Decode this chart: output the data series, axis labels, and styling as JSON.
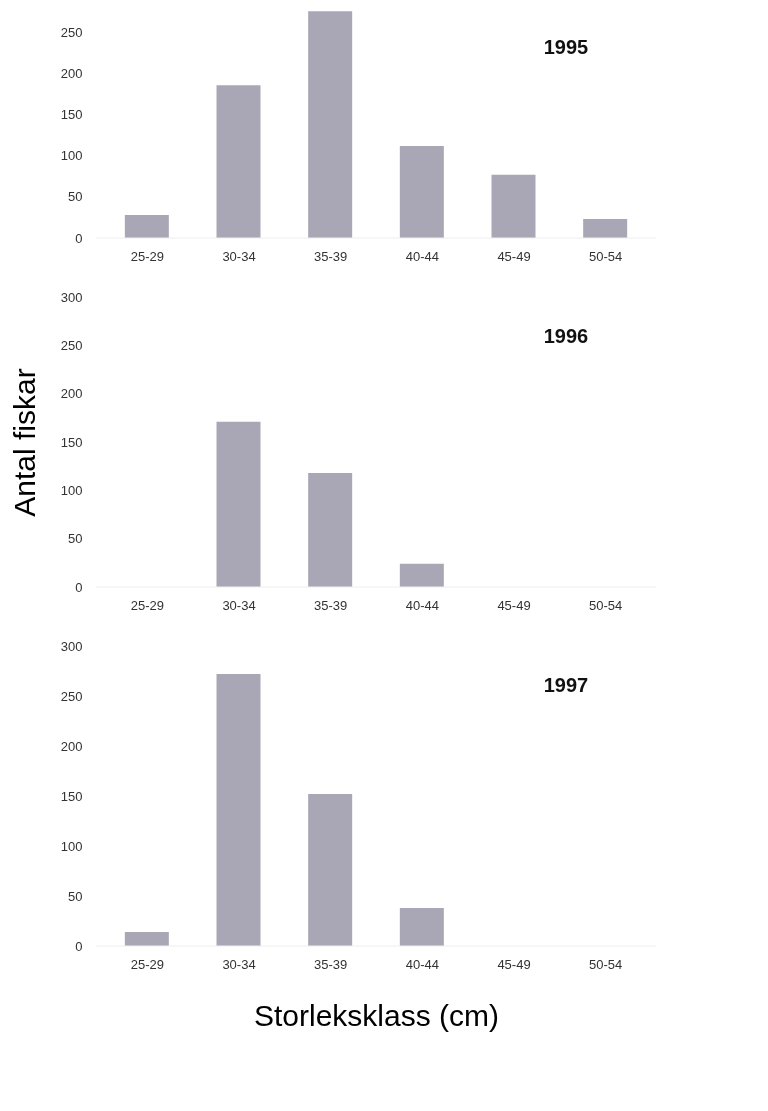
{
  "chart_data": [
    {
      "type": "bar",
      "categories": [
        "25-29",
        "30-34",
        "35-39",
        "40-44",
        "45-49",
        "50-54"
      ],
      "values": [
        28,
        186,
        276,
        112,
        77,
        23
      ],
      "color": "#a9a7b5",
      "ylim": [
        0,
        280
      ],
      "yticks": [
        0,
        50,
        100,
        150,
        200,
        250
      ],
      "grid": false,
      "annotations": [
        "1995"
      ]
    },
    {
      "type": "bar",
      "categories": [
        "25-29",
        "30-34",
        "35-39",
        "40-44",
        "45-49",
        "50-54"
      ],
      "values": [
        0,
        171,
        118,
        24,
        0,
        0
      ],
      "color": "#a9a7b5",
      "ylim": [
        0,
        300
      ],
      "yticks": [
        0,
        50,
        100,
        150,
        200,
        250,
        300
      ],
      "grid": false,
      "ylabel": "Antal fiskar",
      "annotations": [
        "1996"
      ]
    },
    {
      "type": "bar",
      "categories": [
        "25-29",
        "30-34",
        "35-39",
        "40-44",
        "45-49",
        "50-54"
      ],
      "values": [
        14,
        272,
        152,
        38,
        0,
        0
      ],
      "color": "#a9a7b5",
      "ylim": [
        0,
        300
      ],
      "yticks": [
        0,
        50,
        100,
        150,
        200,
        250,
        300
      ],
      "grid": false,
      "xlabel": "Storleksklass (cm)",
      "annotations": [
        "1997"
      ]
    }
  ]
}
